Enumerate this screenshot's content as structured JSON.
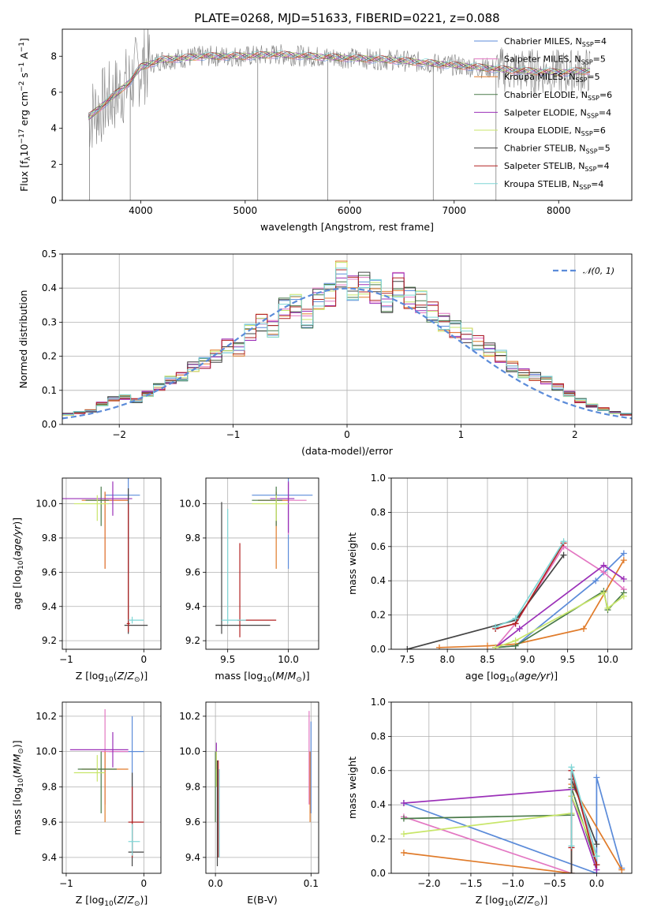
{
  "figure_title": "PLATE=0268, MJD=51633, FIBERID=0221, z=0.088",
  "colors": {
    "chabrier_miles": "#5b8bd9",
    "salpeter_miles": "#e377c2",
    "kroupa_miles": "#e07b2a",
    "chabrier_elodie": "#4a7a4a",
    "salpeter_elodie": "#9b30b8",
    "kroupa_elodie": "#c8e66a",
    "chabrier_stelib": "#444444",
    "salpeter_stelib": "#b22222",
    "kroupa_stelib": "#7fd6d6",
    "data_spectrum": "#808080",
    "gaussian": "#5b8bd9",
    "grid": "#b0b0b0"
  },
  "chart_data": [
    {
      "type": "line",
      "title": "PLATE=0268, MJD=51633, FIBERID=0221, z=0.088",
      "xlabel": "wavelength [Angstrom, rest frame]",
      "ylabel": "Flux [f",
      "xlim": [
        3250,
        8700
      ],
      "ylim": [
        0,
        9.5
      ],
      "xticks": [
        4000,
        5000,
        6000,
        7000,
        8000
      ],
      "yticks": [
        0,
        2,
        4,
        6,
        8
      ],
      "legend_position": "right",
      "grid": false,
      "legend": [
        {
          "model": "Chabrier MILES",
          "nssp": "4"
        },
        {
          "model": "Salpeter MILES",
          "nssp": "5"
        },
        {
          "model": "Kroupa MILES",
          "nssp": "5"
        },
        {
          "model": "Chabrier ELODIE",
          "nssp": "6"
        },
        {
          "model": "Salpeter ELODIE",
          "nssp": "4"
        },
        {
          "model": "Kroupa ELODIE",
          "nssp": "6"
        },
        {
          "model": "Chabrier STELIB",
          "nssp": "5"
        },
        {
          "model": "Salpeter STELIB",
          "nssp": "4"
        },
        {
          "model": "Kroupa STELIB",
          "nssp": "4"
        }
      ],
      "continuum": {
        "x": [
          3500,
          3700,
          3900,
          4000,
          4200,
          4400,
          4600,
          4800,
          5000,
          5300,
          5600,
          6000,
          6400,
          6800,
          7200,
          7600,
          8000,
          8300
        ],
        "y": [
          4.6,
          5.6,
          6.6,
          7.4,
          7.8,
          7.9,
          8.0,
          8.0,
          8.0,
          8.1,
          8.0,
          7.9,
          7.8,
          7.6,
          7.4,
          7.2,
          7.1,
          7.2
        ]
      }
    },
    {
      "type": "line",
      "xlabel": "(data-model)/error",
      "ylabel": "Normed distribution",
      "xlim": [
        -2.5,
        2.5
      ],
      "ylim": [
        0,
        0.5
      ],
      "xticks": [
        -2,
        -1,
        0,
        1,
        2
      ],
      "yticks": [
        0.0,
        0.1,
        0.2,
        0.3,
        0.4,
        0.5
      ],
      "grid": true,
      "legend_position": "top-right",
      "gaussian_label": "𝒩(0, 1)",
      "bins": [
        -2.5,
        -2.4,
        -2.3,
        -2.2,
        -2.1,
        -2.0,
        -1.9,
        -1.8,
        -1.7,
        -1.6,
        -1.5,
        -1.4,
        -1.3,
        -1.2,
        -1.1,
        -1.0,
        -0.9,
        -0.8,
        -0.7,
        -0.6,
        -0.5,
        -0.4,
        -0.3,
        -0.2,
        -0.1,
        0.0,
        0.1,
        0.2,
        0.3,
        0.4,
        0.5,
        0.6,
        0.7,
        0.8,
        0.9,
        1.0,
        1.1,
        1.2,
        1.3,
        1.4,
        1.5,
        1.6,
        1.7,
        1.8,
        1.9,
        2.0,
        2.1,
        2.2,
        2.3,
        2.4,
        2.5
      ],
      "hist_base": [
        0.03,
        0.035,
        0.04,
        0.06,
        0.075,
        0.08,
        0.07,
        0.09,
        0.11,
        0.13,
        0.14,
        0.17,
        0.18,
        0.2,
        0.23,
        0.22,
        0.27,
        0.3,
        0.28,
        0.34,
        0.35,
        0.31,
        0.37,
        0.38,
        0.44,
        0.4,
        0.41,
        0.39,
        0.36,
        0.41,
        0.37,
        0.36,
        0.33,
        0.3,
        0.28,
        0.26,
        0.24,
        0.22,
        0.2,
        0.17,
        0.15,
        0.14,
        0.13,
        0.11,
        0.09,
        0.07,
        0.055,
        0.045,
        0.035,
        0.03
      ]
    },
    {
      "type": "scatter",
      "xlabel": "Z [log10(Z/Z⊙)]",
      "ylabel": "age  [log10(age/yr)]",
      "xlim": [
        -1.05,
        0.22
      ],
      "ylim": [
        9.15,
        10.15
      ],
      "xticks": [
        -1,
        0
      ],
      "yticks": [
        9.2,
        9.4,
        9.6,
        9.8,
        10.0
      ],
      "grid": true,
      "points": [
        {
          "x": -0.2,
          "y": 10.05,
          "xerr": [
            0.3,
            0.15
          ],
          "yerr": [
            0.45,
            0.1
          ],
          "model": 0
        },
        {
          "x": -0.5,
          "y": 10.02,
          "xerr": [
            0.05,
            0.3
          ],
          "yerr": [
            0.4,
            0.05
          ],
          "model": 1
        },
        {
          "x": -0.5,
          "y": 10.02,
          "xerr": [
            0.3,
            0.3
          ],
          "yerr": [
            0.4,
            0.05
          ],
          "model": 2
        },
        {
          "x": -0.55,
          "y": 10.02,
          "xerr": [
            0.2,
            0.1
          ],
          "yerr": [
            0.15,
            0.08
          ],
          "model": 3
        },
        {
          "x": -0.4,
          "y": 10.03,
          "xerr": [
            0.65,
            0.25
          ],
          "yerr": [
            0.1,
            0.1
          ],
          "model": 4
        },
        {
          "x": -0.6,
          "y": 10.0,
          "xerr": [
            0.3,
            0.15
          ],
          "yerr": [
            0.1,
            0.05
          ],
          "model": 5
        },
        {
          "x": -0.2,
          "y": 9.29,
          "xerr": [
            0.05,
            0.25
          ],
          "yerr": [
            0.05,
            0.8
          ],
          "model": 6
        },
        {
          "x": -0.2,
          "y": 9.3,
          "xerr": [
            0.02,
            0.02
          ],
          "yerr": [
            0.05,
            0.7
          ],
          "model": 7
        },
        {
          "x": -0.15,
          "y": 9.32,
          "xerr": [
            0.05,
            0.15
          ],
          "yerr": [
            0.02,
            0.02
          ],
          "model": 8
        }
      ]
    },
    {
      "type": "scatter",
      "xlabel": "mass [log10(M/M⊙)]",
      "xlim": [
        9.32,
        10.25
      ],
      "ylim": [
        9.15,
        10.15
      ],
      "xticks": [
        9.5,
        10.0
      ],
      "yticks": [
        9.2,
        9.4,
        9.6,
        9.8,
        10.0
      ],
      "grid": true,
      "points": [
        {
          "x": 10.0,
          "y": 10.05,
          "xerr": [
            0.3,
            0.2
          ],
          "yerr": [
            0.43,
            0.1
          ],
          "model": 0
        },
        {
          "x": 10.0,
          "y": 10.02,
          "xerr": [
            0.25,
            0.15
          ],
          "yerr": [
            0.2,
            0.1
          ],
          "model": 1
        },
        {
          "x": 9.9,
          "y": 10.02,
          "xerr": [
            0.15,
            0.1
          ],
          "yerr": [
            0.4,
            0.05
          ],
          "model": 2
        },
        {
          "x": 9.9,
          "y": 10.02,
          "xerr": [
            0.2,
            0.05
          ],
          "yerr": [
            0.15,
            0.08
          ],
          "model": 3
        },
        {
          "x": 10.0,
          "y": 10.03,
          "xerr": [
            0.15,
            0.05
          ],
          "yerr": [
            0.2,
            0.1
          ],
          "model": 4
        },
        {
          "x": 9.9,
          "y": 10.0,
          "xerr": [
            0.2,
            0.1
          ],
          "yerr": [
            0.1,
            0.05
          ],
          "model": 5
        },
        {
          "x": 9.45,
          "y": 9.29,
          "xerr": [
            0.05,
            0.4
          ],
          "yerr": [
            0.05,
            0.72
          ],
          "model": 6
        },
        {
          "x": 9.6,
          "y": 9.32,
          "xerr": [
            0.02,
            0.3
          ],
          "yerr": [
            0.1,
            0.45
          ],
          "model": 7
        },
        {
          "x": 9.5,
          "y": 9.32,
          "xerr": [
            0.05,
            0.15
          ],
          "yerr": [
            0.02,
            0.65
          ],
          "model": 8
        }
      ]
    },
    {
      "type": "line",
      "xlabel": "age  [log10(age/yr)]",
      "ylabel": "mass weight",
      "xlim": [
        7.3,
        10.3
      ],
      "ylim": [
        0,
        1
      ],
      "xticks": [
        7.5,
        8.0,
        8.5,
        9.0,
        9.5,
        10.0
      ],
      "yticks": [
        0.0,
        0.2,
        0.4,
        0.6,
        0.8,
        1.0
      ],
      "grid": true,
      "series": [
        {
          "model": 0,
          "x": [
            8.6,
            8.85,
            9.85,
            10.2
          ],
          "y": [
            0.01,
            0.02,
            0.4,
            0.56
          ]
        },
        {
          "model": 1,
          "x": [
            8.6,
            8.85,
            9.45,
            9.95,
            10.2
          ],
          "y": [
            0.01,
            0.15,
            0.6,
            0.45,
            0.35
          ]
        },
        {
          "model": 2,
          "x": [
            7.9,
            8.5,
            8.85,
            9.7,
            10.2
          ],
          "y": [
            0.01,
            0.02,
            0.03,
            0.12,
            0.52
          ]
        },
        {
          "model": 3,
          "x": [
            8.6,
            8.85,
            9.95,
            10.0,
            10.2
          ],
          "y": [
            0.01,
            0.02,
            0.34,
            0.23,
            0.33
          ]
        },
        {
          "model": 4,
          "x": [
            8.6,
            8.9,
            9.95,
            10.2
          ],
          "y": [
            0.01,
            0.12,
            0.49,
            0.41
          ]
        },
        {
          "model": 5,
          "x": [
            8.6,
            8.85,
            9.95,
            10.0,
            10.2
          ],
          "y": [
            0.01,
            0.05,
            0.33,
            0.24,
            0.31
          ]
        },
        {
          "model": 6,
          "x": [
            7.5,
            8.85,
            9.45
          ],
          "y": [
            0.0,
            0.17,
            0.55
          ]
        },
        {
          "model": 7,
          "x": [
            8.6,
            8.85,
            9.45
          ],
          "y": [
            0.12,
            0.15,
            0.62
          ]
        },
        {
          "model": 8,
          "x": [
            8.6,
            8.85,
            9.45
          ],
          "y": [
            0.13,
            0.18,
            0.63
          ]
        }
      ]
    },
    {
      "type": "scatter",
      "xlabel": "Z [log10(Z/Z⊙)]",
      "ylabel": "mass [log10(M/M⊙)]",
      "xlim": [
        -1.05,
        0.22
      ],
      "ylim": [
        9.31,
        10.28
      ],
      "xticks": [
        -1,
        0
      ],
      "yticks": [
        9.4,
        9.6,
        9.8,
        10.0,
        10.2
      ],
      "grid": true,
      "points": [
        {
          "x": -0.15,
          "y": 10.0,
          "xerr": [
            0.3,
            0.15
          ],
          "yerr": [
            0.4,
            0.2
          ],
          "model": 0
        },
        {
          "x": -0.5,
          "y": 10.0,
          "xerr": [
            0.05,
            0.3
          ],
          "yerr": [
            0.3,
            0.24
          ],
          "model": 1
        },
        {
          "x": -0.5,
          "y": 9.9,
          "xerr": [
            0.3,
            0.3
          ],
          "yerr": [
            0.3,
            0.1
          ],
          "model": 2
        },
        {
          "x": -0.55,
          "y": 9.9,
          "xerr": [
            0.3,
            0.2
          ],
          "yerr": [
            0.25,
            0.1
          ],
          "model": 3
        },
        {
          "x": -0.4,
          "y": 10.01,
          "xerr": [
            0.55,
            0.2
          ],
          "yerr": [
            0.1,
            0.1
          ],
          "model": 4
        },
        {
          "x": -0.6,
          "y": 9.88,
          "xerr": [
            0.3,
            0.1
          ],
          "yerr": [
            0.05,
            0.1
          ],
          "model": 5
        },
        {
          "x": -0.15,
          "y": 9.43,
          "xerr": [
            0.05,
            0.15
          ],
          "yerr": [
            0.08,
            0.45
          ],
          "model": 6
        },
        {
          "x": -0.15,
          "y": 9.6,
          "xerr": [
            0.05,
            0.15
          ],
          "yerr": [
            0.2,
            0.2
          ],
          "model": 7
        },
        {
          "x": -0.15,
          "y": 9.49,
          "xerr": [
            0.05,
            0.1
          ],
          "yerr": [
            0.08,
            0.1
          ],
          "model": 8
        }
      ]
    },
    {
      "type": "scatter",
      "xlabel": "E(B-V)",
      "xlim": [
        -0.01,
        0.108
      ],
      "ylim": [
        9.31,
        10.28
      ],
      "xticks": [
        0.0,
        0.1
      ],
      "yticks": [
        9.4,
        9.6,
        9.8,
        10.0,
        10.2
      ],
      "grid": true,
      "points": [
        {
          "x": 0.1,
          "y": 10.05,
          "yerr": [
            0.4,
            0.12
          ],
          "model": 0
        },
        {
          "x": 0.098,
          "y": 10.05,
          "yerr": [
            0.35,
            0.18
          ],
          "model": 1
        },
        {
          "x": 0.099,
          "y": 9.9,
          "yerr": [
            0.3,
            0.1
          ],
          "model": 2
        },
        {
          "x": 0.0,
          "y": 9.9,
          "yerr": [
            0.3,
            0.1
          ],
          "model": 3
        },
        {
          "x": 0.001,
          "y": 10.0,
          "yerr": [
            0.1,
            0.05
          ],
          "model": 4
        },
        {
          "x": 0.001,
          "y": 9.9,
          "yerr": [
            0.1,
            0.1
          ],
          "model": 5
        },
        {
          "x": 0.002,
          "y": 9.45,
          "yerr": [
            0.1,
            0.5
          ],
          "model": 6
        },
        {
          "x": 0.003,
          "y": 9.6,
          "yerr": [
            0.2,
            0.35
          ],
          "model": 7
        },
        {
          "x": 0.004,
          "y": 9.6,
          "yerr": [
            0.2,
            0.3
          ],
          "model": 8
        }
      ]
    },
    {
      "type": "line",
      "xlabel": "Z [log10(Z/Z⊙)]",
      "ylabel": "mass weight",
      "xlim": [
        -2.45,
        0.42
      ],
      "ylim": [
        0,
        1
      ],
      "xticks": [
        -2.0,
        -1.5,
        -1.0,
        -0.5,
        0.0
      ],
      "yticks": [
        0.0,
        0.2,
        0.4,
        0.6,
        0.8,
        1.0
      ],
      "grid": true,
      "series": [
        {
          "model": 0,
          "x": [
            -2.3,
            0.0,
            0.0,
            0.3
          ],
          "y": [
            0.41,
            0.0,
            0.56,
            0.03
          ]
        },
        {
          "model": 1,
          "x": [
            -2.3,
            -0.3,
            -0.3,
            0.0
          ],
          "y": [
            0.33,
            0.0,
            0.6,
            0.1
          ]
        },
        {
          "model": 2,
          "x": [
            -2.3,
            -0.3,
            -0.3,
            0.3
          ],
          "y": [
            0.12,
            0.0,
            0.52,
            0.02
          ]
        },
        {
          "model": 3,
          "x": [
            -2.3,
            -0.3,
            -0.3,
            0.0
          ],
          "y": [
            0.32,
            0.34,
            0.5,
            0.05
          ]
        },
        {
          "model": 4,
          "x": [
            -2.3,
            -0.3,
            -0.3,
            0.0
          ],
          "y": [
            0.41,
            0.49,
            0.45,
            0.02
          ]
        },
        {
          "model": 5,
          "x": [
            -2.3,
            -0.3,
            -0.3,
            0.0
          ],
          "y": [
            0.23,
            0.35,
            0.45,
            0.1
          ]
        },
        {
          "model": 6,
          "x": [
            -0.3,
            -0.3,
            0.0
          ],
          "y": [
            0.0,
            0.55,
            0.17
          ]
        },
        {
          "model": 7,
          "x": [
            -0.3,
            -0.3,
            0.0
          ],
          "y": [
            0.15,
            0.6,
            0.05
          ]
        },
        {
          "model": 8,
          "x": [
            -0.3,
            -0.3,
            0.0
          ],
          "y": [
            0.16,
            0.62,
            0.1
          ]
        }
      ]
    }
  ]
}
